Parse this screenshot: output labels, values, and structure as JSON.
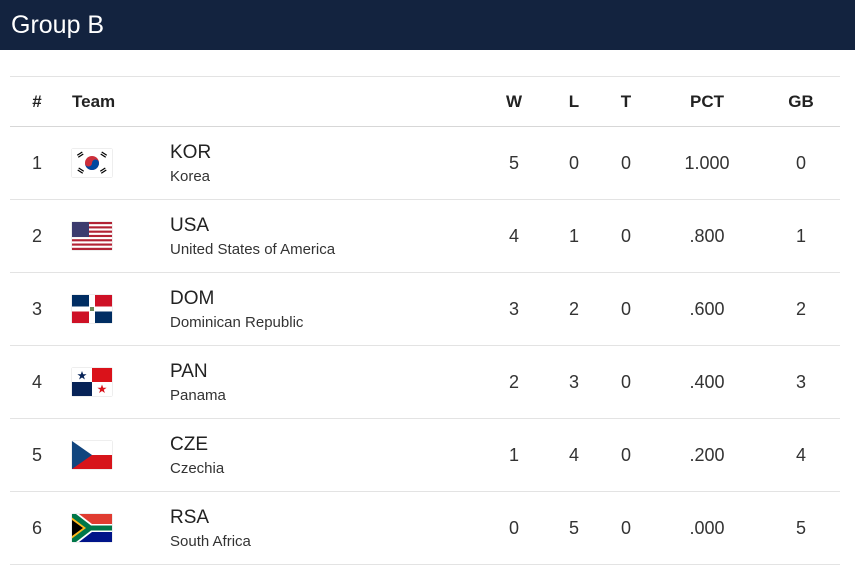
{
  "group_title": "Group B",
  "columns": {
    "rank": "#",
    "team": "Team",
    "w": "W",
    "l": "L",
    "t": "T",
    "pct": "PCT",
    "gb": "GB"
  },
  "rows": [
    {
      "rank": "1",
      "code": "KOR",
      "country": "Korea",
      "flag": "korea-flag",
      "w": "5",
      "l": "0",
      "t": "0",
      "pct": "1.000",
      "gb": "0"
    },
    {
      "rank": "2",
      "code": "USA",
      "country": "United States of America",
      "flag": "usa-flag",
      "w": "4",
      "l": "1",
      "t": "0",
      "pct": ".800",
      "gb": "1"
    },
    {
      "rank": "3",
      "code": "DOM",
      "country": "Dominican Republic",
      "flag": "dominican-republic-flag",
      "w": "3",
      "l": "2",
      "t": "0",
      "pct": ".600",
      "gb": "2"
    },
    {
      "rank": "4",
      "code": "PAN",
      "country": "Panama",
      "flag": "panama-flag",
      "w": "2",
      "l": "3",
      "t": "0",
      "pct": ".400",
      "gb": "3"
    },
    {
      "rank": "5",
      "code": "CZE",
      "country": "Czechia",
      "flag": "czechia-flag",
      "w": "1",
      "l": "4",
      "t": "0",
      "pct": ".200",
      "gb": "4"
    },
    {
      "rank": "6",
      "code": "RSA",
      "country": "South Africa",
      "flag": "south-africa-flag",
      "w": "0",
      "l": "5",
      "t": "0",
      "pct": ".000",
      "gb": "5"
    }
  ],
  "colors": {
    "header_bg": "#13233f",
    "header_text": "#ffffff",
    "row_border": "#e3e3e3"
  }
}
